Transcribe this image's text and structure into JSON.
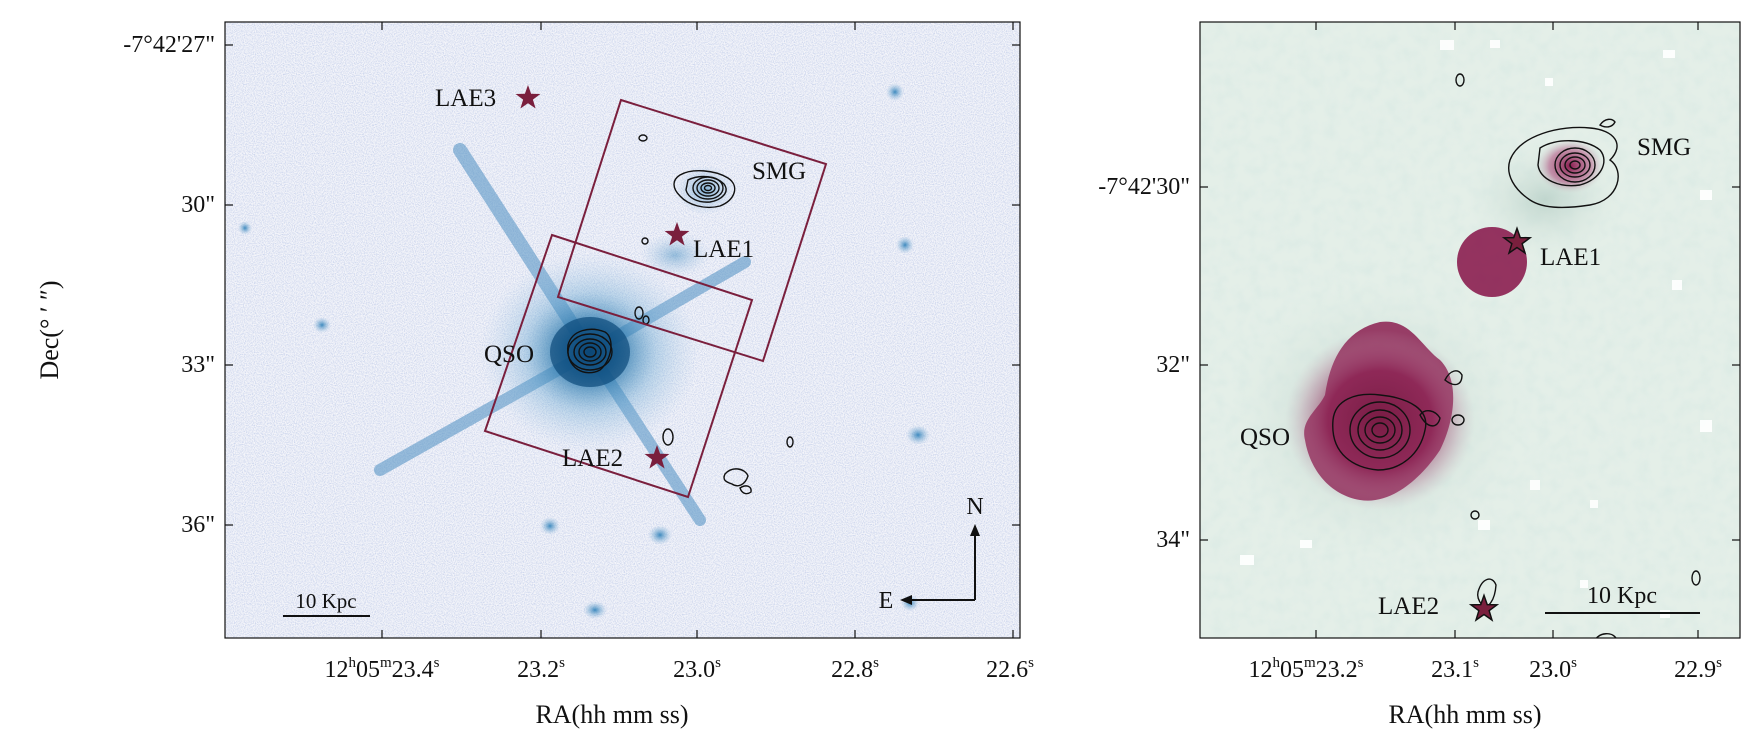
{
  "left_panel": {
    "y_ticks": [
      {
        "label": "-7°42'27\"",
        "value": 27
      },
      {
        "label": "30\"",
        "value": 30
      },
      {
        "label": "33\"",
        "value": 33
      },
      {
        "label": "36\"",
        "value": 36
      }
    ],
    "x_ticks": [
      {
        "label": "12h05m23.4s",
        "value": 23.4
      },
      {
        "label": "23.2s",
        "value": 23.2
      },
      {
        "label": "23.0s",
        "value": 23.0
      },
      {
        "label": "22.8s",
        "value": 22.8
      },
      {
        "label": "22.6s",
        "value": 22.6
      }
    ],
    "x_ticks_display": {
      "first_main": "12",
      "first_h": "h",
      "first_mid": "05",
      "first_m": "m",
      "first_end": "23.4",
      "first_s": "s",
      "t2": "23.2",
      "t3": "23.0",
      "t4": "22.8",
      "t5": "22.6",
      "s": "s"
    },
    "xlabel": "RA(hh mm ss)",
    "ylabel": "Dec(° ′ ″)",
    "sources": {
      "lae3": "LAE3",
      "smg": "SMG",
      "lae1": "LAE1",
      "qso": "QSO",
      "lae2": "LAE2"
    },
    "scalebar": "10 Kpc",
    "compass": {
      "north": "N",
      "east": "E"
    }
  },
  "right_panel": {
    "y_ticks": [
      {
        "label": "-7°42'30\"",
        "value": 30
      },
      {
        "label": "32\"",
        "value": 32
      },
      {
        "label": "34\"",
        "value": 34
      }
    ],
    "x_ticks_display": {
      "first_main": "12",
      "first_h": "h",
      "first_mid": "05",
      "first_m": "m",
      "first_end": "23.2",
      "first_s": "s",
      "t2": "23.1",
      "t3": "23.0",
      "t4": "22.9",
      "s": "s"
    },
    "xlabel": "RA(hh mm ss)",
    "sources": {
      "smg": "SMG",
      "lae1": "LAE1",
      "qso": "QSO",
      "lae2": "LAE2"
    },
    "scalebar": "10 Kpc"
  },
  "colors": {
    "left_bg": "#e9edf5",
    "left_emission": "#1f6fa5",
    "right_bg": "#e4efe8",
    "right_emission": "#8b1e50",
    "star": "#7a1f3d",
    "box": "#7a1f3d"
  }
}
